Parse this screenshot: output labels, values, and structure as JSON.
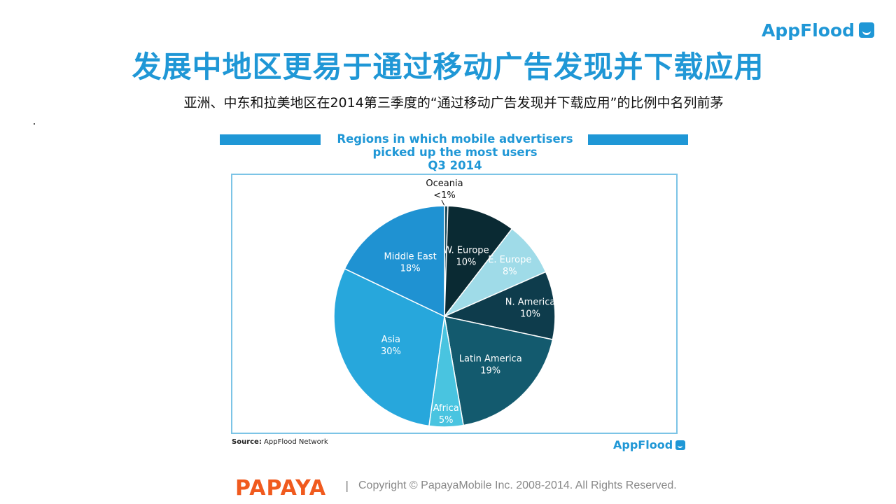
{
  "header": {
    "logo_text": "AppFlood",
    "title": "发展中地区更易于通过移动广告发现并下载应用",
    "subtitle": "亚洲、中东和拉美地区在2014第三季度的“通过移动广告发现并下载应用”的比例中名列前茅"
  },
  "chart_data": {
    "type": "pie",
    "title": "Regions in which mobile advertisers picked up the most users Q3 2014",
    "title_lines": [
      "Regions in which mobile advertisers",
      "picked up the most users",
      "Q3 2014"
    ],
    "slices": [
      {
        "label": "Oceania",
        "value": 0.5,
        "display": "<1%",
        "color": "#1b4a5a"
      },
      {
        "label": "W. Europe",
        "value": 10,
        "display": "10%",
        "color": "#0a2a33"
      },
      {
        "label": "E. Europe",
        "value": 8,
        "display": "8%",
        "color": "#9fdbe8"
      },
      {
        "label": "N. America",
        "value": 10,
        "display": "10%",
        "color": "#0e3c4c"
      },
      {
        "label": "Latin America",
        "value": 19,
        "display": "19%",
        "color": "#135a6e"
      },
      {
        "label": "Africa",
        "value": 5,
        "display": "5%",
        "color": "#49c4e0"
      },
      {
        "label": "Asia",
        "value": 30,
        "display": "30%",
        "color": "#27a7dc"
      },
      {
        "label": "Middle East",
        "value": 18,
        "display": "18%",
        "color": "#1f92d2"
      }
    ],
    "source_label": "Source:",
    "source_text": "AppFlood Network",
    "logo_text": "AppFlood"
  },
  "footer": {
    "brand": "PAPAYA",
    "separator": "|",
    "copyright": "Copyright © PapayaMobile Inc. 2008-2014. All Rights Reserved."
  }
}
